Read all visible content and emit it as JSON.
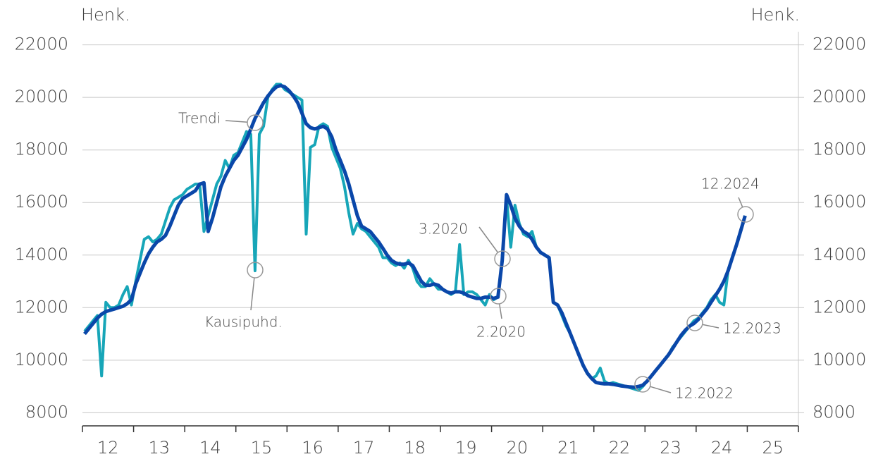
{
  "chart_data": {
    "type": "line",
    "y_label": "Henk.",
    "y2_label": "Henk.",
    "x": [
      12.042,
      12.125,
      12.208,
      12.292,
      12.375,
      12.458,
      12.542,
      12.625,
      12.708,
      12.792,
      12.875,
      12.958,
      13.042,
      13.125,
      13.208,
      13.292,
      13.375,
      13.458,
      13.542,
      13.625,
      13.708,
      13.792,
      13.875,
      13.958,
      14.042,
      14.125,
      14.208,
      14.292,
      14.375,
      14.458,
      14.542,
      14.625,
      14.708,
      14.792,
      14.875,
      14.958,
      15.042,
      15.125,
      15.208,
      15.292,
      15.375,
      15.458,
      15.542,
      15.625,
      15.708,
      15.792,
      15.875,
      15.958,
      16.042,
      16.125,
      16.208,
      16.292,
      16.375,
      16.458,
      16.542,
      16.625,
      16.708,
      16.792,
      16.875,
      16.958,
      17.042,
      17.125,
      17.208,
      17.292,
      17.375,
      17.458,
      17.542,
      17.625,
      17.708,
      17.792,
      17.875,
      17.958,
      18.042,
      18.125,
      18.208,
      18.292,
      18.375,
      18.458,
      18.542,
      18.625,
      18.708,
      18.792,
      18.875,
      18.958,
      19.042,
      19.125,
      19.208,
      19.292,
      19.375,
      19.458,
      19.542,
      19.625,
      19.708,
      19.792,
      19.875,
      19.958,
      20.042,
      20.125,
      20.208,
      20.292,
      20.375,
      20.458,
      20.542,
      20.625,
      20.708,
      20.792,
      20.875,
      20.958,
      21.042,
      21.125,
      21.208,
      21.292,
      21.375,
      21.458,
      21.542,
      21.625,
      21.708,
      21.792,
      21.875,
      21.958,
      22.042,
      22.125,
      22.208,
      22.292,
      22.375,
      22.458,
      22.542,
      22.625,
      22.708,
      22.792,
      22.875,
      22.958,
      23.042,
      23.125,
      23.208,
      23.292,
      23.375,
      23.458,
      23.542,
      23.625,
      23.708,
      23.792,
      23.875,
      23.958,
      24.042,
      24.125,
      24.208,
      24.292,
      24.375,
      24.458,
      24.542,
      24.625,
      24.708,
      24.792,
      24.875,
      24.958
    ],
    "series": [
      {
        "name": "Kausipuhd.",
        "color": "#17a6b8",
        "values": [
          11100,
          11300,
          11500,
          11700,
          9400,
          12200,
          12000,
          12000,
          12100,
          12500,
          12800,
          12100,
          13000,
          13800,
          14600,
          14700,
          14500,
          14600,
          14800,
          15300,
          15800,
          16100,
          16200,
          16300,
          16500,
          16600,
          16700,
          16700,
          14900,
          15500,
          16100,
          16700,
          17000,
          17600,
          17300,
          17800,
          17900,
          18300,
          18700,
          18600,
          13400,
          18600,
          18900,
          20000,
          20300,
          20500,
          20500,
          20300,
          20200,
          20100,
          20000,
          19900,
          14800,
          18100,
          18200,
          18900,
          19000,
          18900,
          18100,
          17700,
          17300,
          16600,
          15600,
          14800,
          15200,
          15000,
          14900,
          14700,
          14500,
          14300,
          13900,
          13900,
          13700,
          13600,
          13700,
          13500,
          13800,
          13500,
          13000,
          12800,
          12800,
          13100,
          12900,
          12700,
          12700,
          12600,
          12500,
          12600,
          14400,
          12500,
          12600,
          12600,
          12500,
          12300,
          12100,
          12500,
          12300,
          12400,
          13800,
          16200,
          14300,
          15900,
          15200,
          14800,
          14700,
          14900,
          14300,
          14100,
          14000,
          13900,
          12200,
          12100,
          11700,
          11300,
          11000,
          10600,
          10200,
          9800,
          9500,
          9300,
          9400,
          9700,
          9200,
          9100,
          9150,
          9100,
          9050,
          9000,
          8950,
          8900,
          8850,
          9000,
          9200,
          9400,
          9600,
          9800,
          10000,
          10200,
          10500,
          10700,
          10900,
          11100,
          11300,
          11500,
          11600,
          11800,
          12000,
          12300,
          12500,
          12200,
          12100,
          13400,
          13900,
          14400,
          14950,
          15500
        ]
      },
      {
        "name": "Trendi",
        "color": "#0a47a9",
        "values": [
          11000,
          11200,
          11400,
          11600,
          11750,
          11850,
          11900,
          11950,
          12000,
          12050,
          12150,
          12300,
          12900,
          13300,
          13700,
          14050,
          14300,
          14500,
          14600,
          14750,
          15100,
          15500,
          15900,
          16150,
          16250,
          16350,
          16450,
          16700,
          16750,
          14900,
          15400,
          16000,
          16600,
          17000,
          17300,
          17600,
          17800,
          18100,
          18400,
          18800,
          19200,
          19500,
          19800,
          20050,
          20250,
          20400,
          20450,
          20400,
          20250,
          20050,
          19800,
          19400,
          19000,
          18850,
          18800,
          18850,
          18900,
          18800,
          18500,
          18000,
          17600,
          17200,
          16700,
          16100,
          15500,
          15100,
          15000,
          14900,
          14700,
          14500,
          14250,
          14000,
          13800,
          13700,
          13650,
          13650,
          13700,
          13600,
          13300,
          13000,
          12850,
          12850,
          12900,
          12850,
          12700,
          12600,
          12550,
          12600,
          12600,
          12550,
          12450,
          12400,
          12350,
          12350,
          12400,
          12400,
          12350,
          12400,
          13800,
          16300,
          15900,
          15400,
          15100,
          14900,
          14800,
          14600,
          14300,
          14100,
          14000,
          13900,
          12200,
          12100,
          11800,
          11400,
          11000,
          10600,
          10200,
          9800,
          9500,
          9300,
          9150,
          9120,
          9100,
          9100,
          9080,
          9050,
          9020,
          9000,
          8980,
          8970,
          9000,
          9050,
          9200,
          9400,
          9600,
          9800,
          10000,
          10200,
          10450,
          10700,
          10950,
          11150,
          11300,
          11400,
          11550,
          11750,
          11950,
          12200,
          12450,
          12700,
          13000,
          13400,
          13900,
          14400,
          14950,
          15500
        ]
      }
    ],
    "annotations": [
      "Trendi",
      "Kausipuhd.",
      "3.2020",
      "2.2020",
      "12.2022",
      "12.2023",
      "12.2024"
    ],
    "xlim": [
      12,
      26
    ],
    "xticks": [
      {
        "value": 12.5,
        "label": "12"
      },
      {
        "value": 13.5,
        "label": "13"
      },
      {
        "value": 14.5,
        "label": "14"
      },
      {
        "value": 15.5,
        "label": "15"
      },
      {
        "value": 16.5,
        "label": "16"
      },
      {
        "value": 17.5,
        "label": "17"
      },
      {
        "value": 18.5,
        "label": "18"
      },
      {
        "value": 19.5,
        "label": "19"
      },
      {
        "value": 20.5,
        "label": "20"
      },
      {
        "value": 21.5,
        "label": "21"
      },
      {
        "value": 22.5,
        "label": "22"
      },
      {
        "value": 23.5,
        "label": "23"
      },
      {
        "value": 24.5,
        "label": "24"
      },
      {
        "value": 25.5,
        "label": "25"
      }
    ],
    "ylim": [
      7500,
      22500
    ],
    "yticks": [
      8000,
      10000,
      12000,
      14000,
      16000,
      18000,
      20000,
      22000
    ],
    "y2lim": [
      7500,
      22500
    ],
    "y2ticks": [
      8000,
      10000,
      12000,
      14000,
      16000,
      18000,
      20000,
      22000
    ],
    "grid": true
  }
}
